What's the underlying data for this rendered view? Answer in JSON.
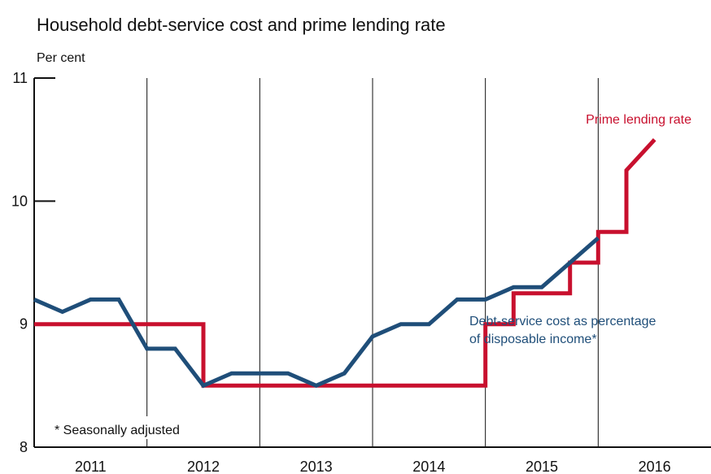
{
  "title": "Household debt-service cost and prime lending rate",
  "y_unit": "Per cent",
  "note": "* Seasonally adjusted",
  "chart_data": {
    "type": "line",
    "title": "Household debt-service cost and prime lending rate",
    "xlabel": "",
    "ylabel": "Per cent",
    "xlim": [
      2011.0,
      2017.0
    ],
    "ylim": [
      8,
      11
    ],
    "y_ticks": [
      8,
      9,
      10,
      11
    ],
    "x_tick_labels": [
      "2011",
      "2012",
      "2013",
      "2014",
      "2015",
      "2016"
    ],
    "x_tick_positions": [
      2011.5,
      2012.5,
      2013.5,
      2014.5,
      2015.5,
      2016.5
    ],
    "year_dividers": [
      2012,
      2013,
      2014,
      2015,
      2016
    ],
    "grid": false,
    "colors": {
      "prime": "#c8102e",
      "debt": "#1f4e79",
      "axis": "#111111",
      "prime_label": "#c8102e",
      "debt_label": "#1f4e79"
    },
    "series": [
      {
        "name": "Prime lending rate",
        "step": true,
        "x": [
          2011.0,
          2012.5,
          2012.5,
          2015.0,
          2015.0,
          2015.25,
          2015.25,
          2015.75,
          2015.75,
          2016.0,
          2016.0,
          2016.25,
          2016.25,
          2016.5
        ],
        "y": [
          9.0,
          9.0,
          8.5,
          8.5,
          9.0,
          9.0,
          9.25,
          9.25,
          9.5,
          9.5,
          9.75,
          9.75,
          10.25,
          10.5
        ]
      },
      {
        "name": "Debt-service cost as percentage of disposable income*",
        "step": false,
        "x": [
          2011.0,
          2011.25,
          2011.5,
          2011.75,
          2012.0,
          2012.25,
          2012.5,
          2012.75,
          2013.0,
          2013.25,
          2013.5,
          2013.75,
          2014.0,
          2014.25,
          2014.5,
          2014.75,
          2015.0,
          2015.25,
          2015.5,
          2015.75,
          2016.0,
          2016.25,
          2016.5,
          2016.75
        ],
        "y": [
          9.2,
          9.1,
          9.2,
          9.2,
          8.8,
          8.8,
          8.5,
          8.6,
          8.6,
          8.6,
          8.5,
          8.6,
          8.9,
          9.0,
          9.0,
          9.2,
          9.2,
          9.3,
          9.3,
          9.5,
          9.7,
          null,
          null,
          null
        ]
      }
    ],
    "annotations": {
      "prime_label": "Prime lending rate",
      "debt_label_line1": "Debt-service cost as percentage",
      "debt_label_line2": "of disposable income*"
    }
  }
}
